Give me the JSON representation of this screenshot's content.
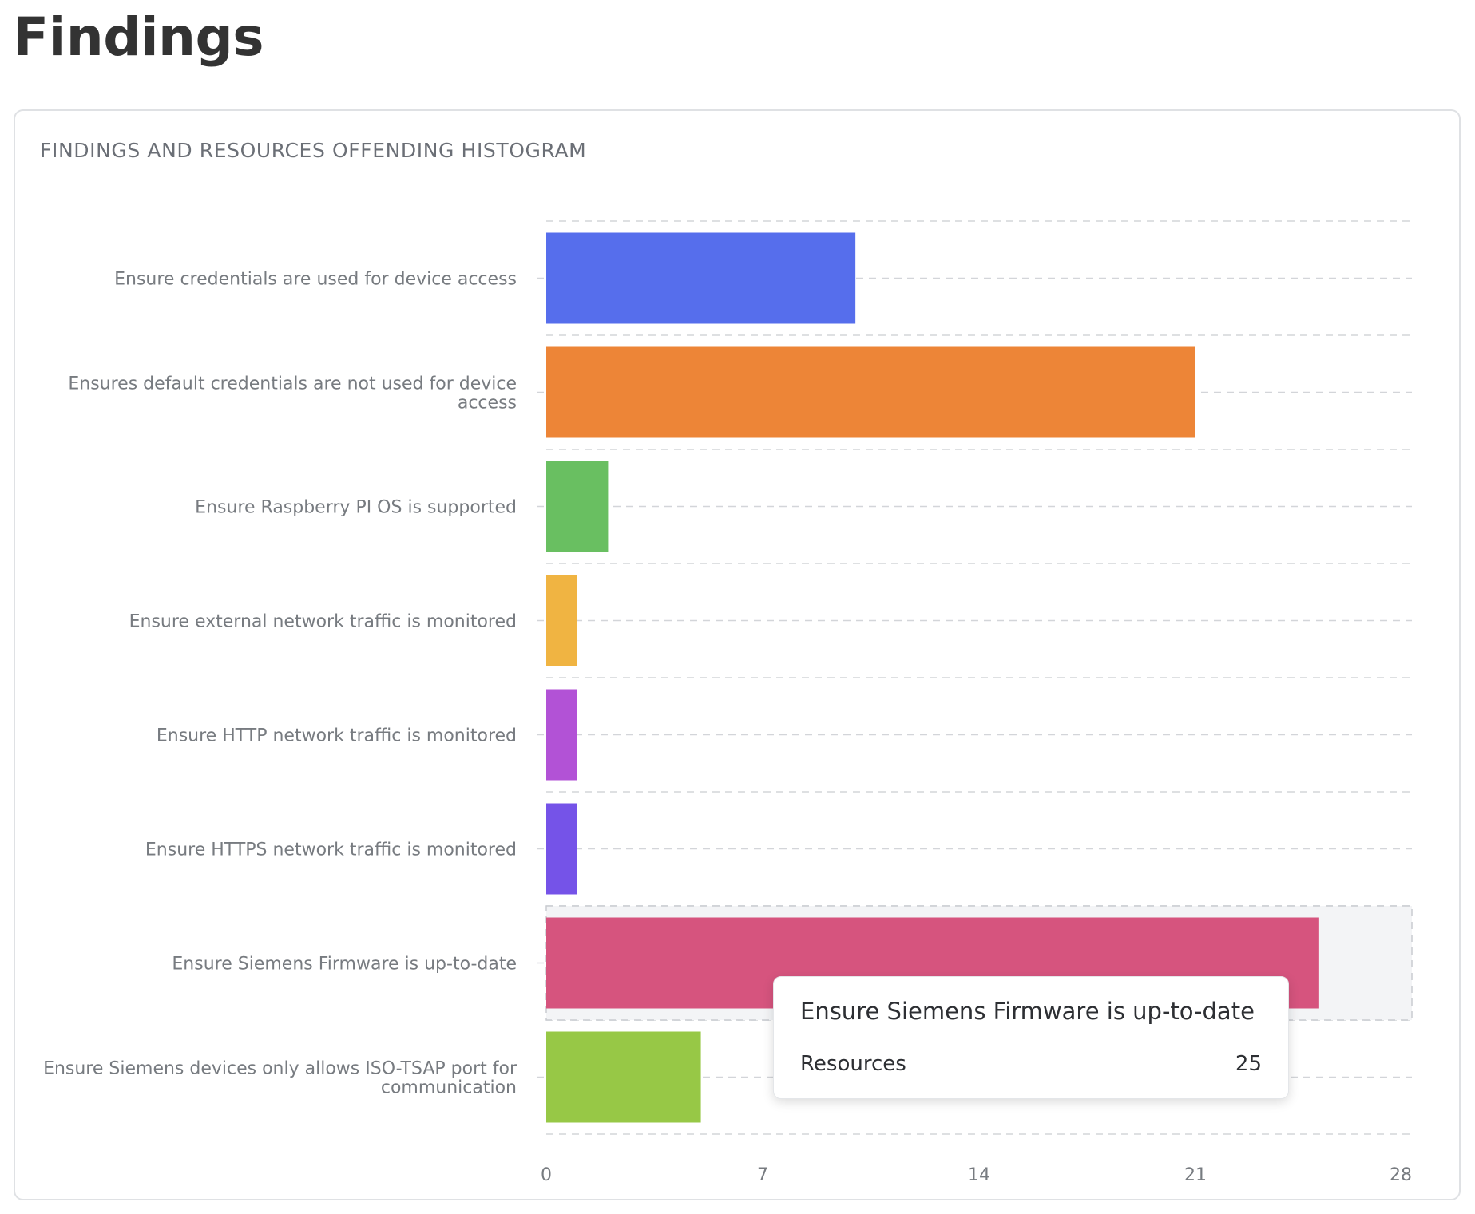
{
  "page": {
    "title": "Findings"
  },
  "card": {
    "title": "FINDINGS AND RESOURCES OFFENDING HISTOGRAM"
  },
  "chart_data": {
    "type": "bar",
    "orientation": "horizontal",
    "categories": [
      "Ensure credentials are used for device access",
      "Ensures default credentials are not used for device access",
      "Ensure Raspberry PI OS is supported",
      "Ensure external network traffic is monitored",
      "Ensure HTTP network traffic is monitored",
      "Ensure HTTPS network traffic is monitored",
      "Ensure Siemens Firmware is up-to-date",
      "Ensure Siemens devices only allows ISO-TSAP port for communication"
    ],
    "values": [
      10,
      21,
      2,
      1,
      1,
      1,
      25,
      5
    ],
    "colors": [
      "#566eec",
      "#ed8537",
      "#69bf61",
      "#f0b442",
      "#b252d6",
      "#7553e8",
      "#d6547e",
      "#97c846"
    ],
    "xlim": [
      0,
      28
    ],
    "xticks": [
      0,
      7,
      14,
      21,
      28
    ],
    "grid": true,
    "highlighted_category": "Ensure Siemens Firmware is up-to-date",
    "legend": "none"
  },
  "tooltip": {
    "title": "Ensure Siemens Firmware is up-to-date",
    "metric_label": "Resources",
    "metric_value": "25"
  }
}
